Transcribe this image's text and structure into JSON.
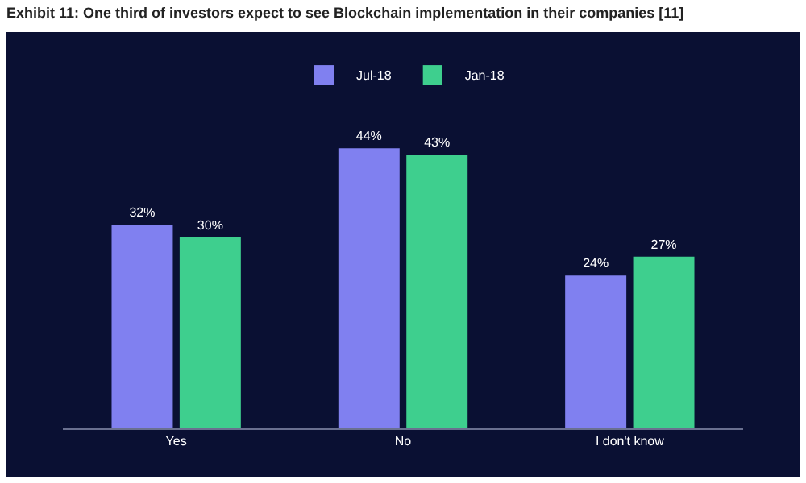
{
  "chart_data": {
    "type": "bar",
    "title": "Exhibit 11: One third of investors expect to see Blockchain implementation in their companies [11]",
    "categories": [
      "Yes",
      "No",
      "I don't know"
    ],
    "series": [
      {
        "name": "Jul-18",
        "color": "#8080f0",
        "values": [
          32,
          44,
          24
        ],
        "value_labels": [
          "32%",
          "44%",
          "24%"
        ]
      },
      {
        "name": "Jan-18",
        "color": "#3ecf8e",
        "values": [
          30,
          43,
          27
        ],
        "value_labels": [
          "30%",
          "43%",
          "27%"
        ]
      }
    ],
    "legend": "top"
  }
}
